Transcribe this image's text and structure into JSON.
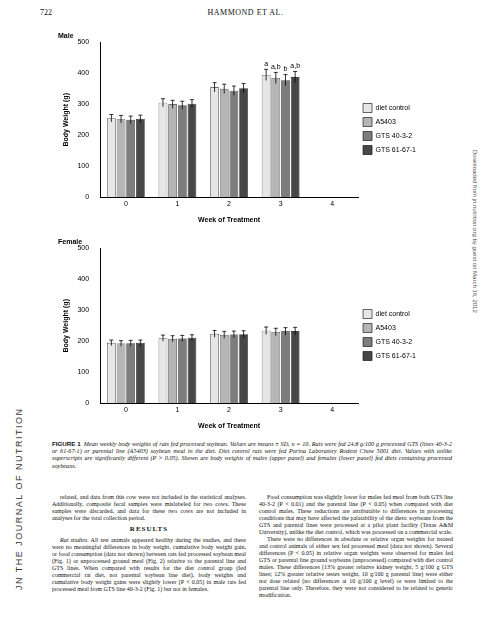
{
  "header": {
    "page": "722",
    "running_head": "HAMMOND ET AL."
  },
  "side_left": "JN THE JOURNAL OF NUTRITION",
  "side_right": "Downloaded from jn.nutrition.org by guest on March 16, 2012",
  "chart_data": [
    {
      "type": "bar",
      "title": "Male",
      "xlabel": "Week of Treatment",
      "ylabel": "Body Weight (g)",
      "categories": [
        "0",
        "1",
        "2",
        "3",
        "4"
      ],
      "series": [
        {
          "name": "diet control",
          "color": "#e6e6e6",
          "values": [
            255,
            305,
            355,
            395,
            null
          ],
          "errors": [
            12,
            13,
            15,
            18,
            null
          ],
          "letters": [
            null,
            null,
            null,
            "a"
          ]
        },
        {
          "name": "A5403",
          "color": "#b5b5b5",
          "values": [
            252,
            300,
            350,
            385,
            null
          ],
          "errors": [
            12,
            13,
            15,
            18,
            null
          ],
          "letters": [
            null,
            null,
            null,
            "a,b"
          ]
        },
        {
          "name": "GTS 40-3-2",
          "color": "#7d7d7d",
          "values": [
            250,
            297,
            344,
            378,
            null
          ],
          "errors": [
            12,
            13,
            15,
            18,
            null
          ],
          "letters": [
            null,
            null,
            null,
            "b"
          ]
        },
        {
          "name": "GTS 61-67-1",
          "color": "#474747",
          "values": [
            253,
            302,
            352,
            388,
            null
          ],
          "errors": [
            12,
            13,
            15,
            18,
            null
          ],
          "letters": [
            null,
            null,
            null,
            "a,b"
          ]
        }
      ],
      "ylim": [
        0,
        500
      ],
      "yticks": [
        0,
        100,
        200,
        300,
        400,
        500
      ],
      "grid": false,
      "legend": "right"
    },
    {
      "type": "bar",
      "title": "Female",
      "xlabel": "Week of Treatment",
      "ylabel": "Body Weight (g)",
      "categories": [
        "0",
        "1",
        "2",
        "3",
        "4"
      ],
      "series": [
        {
          "name": "diet control",
          "color": "#e6e6e6",
          "values": [
            195,
            210,
            224,
            234,
            null
          ],
          "errors": [
            9,
            10,
            11,
            12,
            null
          ]
        },
        {
          "name": "A5403",
          "color": "#b5b5b5",
          "values": [
            193,
            208,
            221,
            230,
            null
          ],
          "errors": [
            9,
            10,
            11,
            12,
            null
          ]
        },
        {
          "name": "GTS 40-3-2",
          "color": "#7d7d7d",
          "values": [
            194,
            209,
            222,
            232,
            null
          ],
          "errors": [
            9,
            10,
            11,
            12,
            null
          ]
        },
        {
          "name": "GTS 61-67-1",
          "color": "#474747",
          "values": [
            195,
            211,
            223,
            233,
            null
          ],
          "errors": [
            9,
            10,
            11,
            12,
            null
          ]
        }
      ],
      "ylim": [
        0,
        500
      ],
      "yticks": [
        0,
        100,
        200,
        300,
        400,
        500
      ],
      "grid": false,
      "legend": "right"
    }
  ],
  "caption": {
    "label": "FIGURE 1",
    "text": "Mean weekly body weights of rats fed processed soybean. Values are means ± SD, n = 10. Rats were fed 24.8 g/100 g processed GTS (lines 40-3-2 or 61-67-1) or parental line (A5403) soybean meal in the diet. Diet control rats were fed Purina Laboratory Rodent Chow 5001 diet. Values with unlike superscripts are significantly different (P > 0.05). Shown are body weights of males (upper panel) and females (lower panel) fed diets containing processed soybeans."
  },
  "body": {
    "left": [
      {
        "kind": "p",
        "text": "related, and data from this cow were not included in the statistical analyses. Additionally, composite fecal samples were mislabeled for two cows. These samples were discarded, and data for these two cows are not included in analyses for the total collection period."
      },
      {
        "kind": "heading",
        "text": "RESULTS"
      },
      {
        "kind": "p",
        "lead": "Rat studies.",
        "text": "All test animals appeared healthy during the studies, and there were no meaningful differences in body weight, cumulative body weight gain, or food consumption (data not shown) between rats fed processed soybean meal (Fig. 1) or unprocessed ground meal (Fig. 2) relative to the parental line and GTS lines. When compared with results for the diet control group (fed commercial rat diet, not parental soybean line diet), body weights and cumulative body weight gains were slightly lower (P < 0.05) in male rats fed processed meal from GTS line 40-3-2 (Fig. 1) but not in females."
      }
    ],
    "right": [
      {
        "kind": "p",
        "text": "Food consumption was slightly lower for males fed meal from both GTS line 40-3-2 (P < 0.01) and the parental line (P < 0.05) when compared with diet control males. These reductions are attributable to differences in processing conditions that may have affected the palatability of the diets: soybeans from the GTS and parental lines were processed at a pilot plant facility (Texas A&M University), unlike the diet control, which was processed on a commercial scale."
      },
      {
        "kind": "p",
        "text": "There were no differences in absolute or relative organ weights for treated and control animals of either sex fed processed meal (data not shown). Several differences (P < 0.05) in relative organ weights were observed for males fed GTS or parental line ground soybeans (unprocessed) compared with diet control males. These differences (13% greater relative kidney weight, 5 g/100 g GTS lines; 12% greater relative testes weight, 10 g/100 g parental line) were either not dose related (no differences at 10 g/100 g level) or were limited to the parental line only. Therefore, they were not considered to be related to genetic modification."
      }
    ]
  }
}
